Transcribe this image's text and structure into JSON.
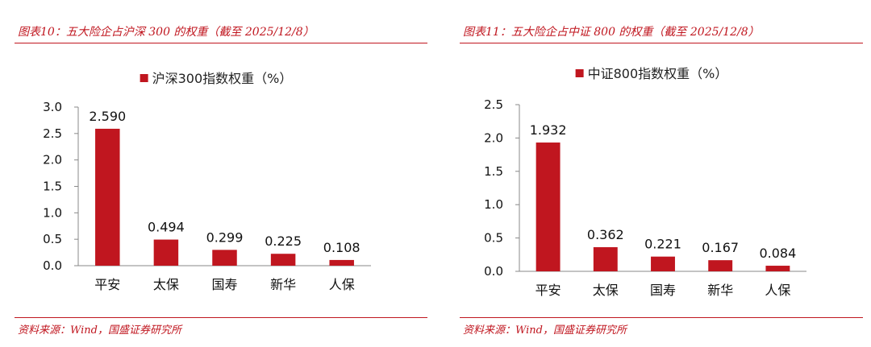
{
  "colors": {
    "accent": "#c0161f",
    "bar": "#c0161f"
  },
  "panels": [
    {
      "caption": "图表10：五大险企占沪深 300 的权重（截至 2025/12/8）",
      "source": "资料来源：Wind，国盛证券研究所"
    },
    {
      "caption": "图表11：五大险企占中证 800 的权重（截至 2025/12/8）",
      "source": "资料来源：Wind，国盛证券研究所"
    }
  ],
  "chart_data": [
    {
      "type": "bar",
      "title": "",
      "series": [
        {
          "name": "沪深300指数权重（%）",
          "values": [
            2.59,
            0.494,
            0.299,
            0.225,
            0.108
          ]
        }
      ],
      "categories": [
        "平安",
        "太保",
        "国寿",
        "新华",
        "人保"
      ],
      "value_labels": [
        "2.590",
        "0.494",
        "0.299",
        "0.225",
        "0.108"
      ],
      "ylim": [
        0,
        3.0
      ],
      "yticks": [
        "0.0",
        "0.5",
        "1.0",
        "1.5",
        "2.0",
        "2.5",
        "3.0"
      ],
      "legend": "top-center",
      "grid": false
    },
    {
      "type": "bar",
      "title": "",
      "series": [
        {
          "name": "中证800指数权重（%）",
          "values": [
            1.932,
            0.362,
            0.221,
            0.167,
            0.084
          ]
        }
      ],
      "categories": [
        "平安",
        "太保",
        "国寿",
        "新华",
        "人保"
      ],
      "value_labels": [
        "1.932",
        "0.362",
        "0.221",
        "0.167",
        "0.084"
      ],
      "ylim": [
        0,
        2.5
      ],
      "yticks": [
        "0.0",
        "0.5",
        "1.0",
        "1.5",
        "2.0",
        "2.5"
      ],
      "legend": "top-center",
      "grid": false
    }
  ]
}
